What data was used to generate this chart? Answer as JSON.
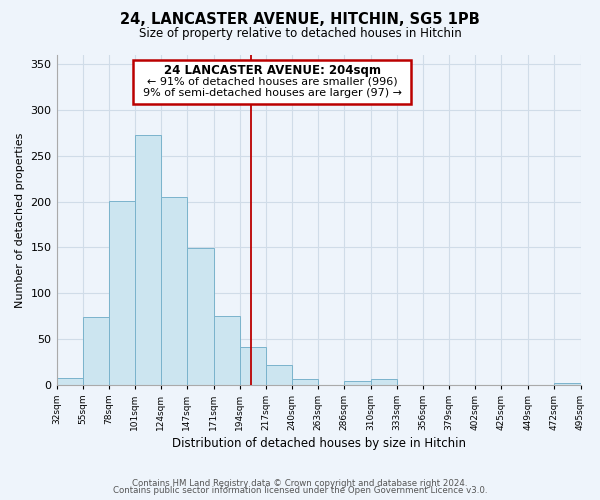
{
  "title": "24, LANCASTER AVENUE, HITCHIN, SG5 1PB",
  "subtitle": "Size of property relative to detached houses in Hitchin",
  "xlabel": "Distribution of detached houses by size in Hitchin",
  "ylabel": "Number of detached properties",
  "bin_labels": [
    "32sqm",
    "55sqm",
    "78sqm",
    "101sqm",
    "124sqm",
    "147sqm",
    "171sqm",
    "194sqm",
    "217sqm",
    "240sqm",
    "263sqm",
    "286sqm",
    "310sqm",
    "333sqm",
    "356sqm",
    "379sqm",
    "402sqm",
    "425sqm",
    "449sqm",
    "472sqm",
    "495sqm"
  ],
  "bar_heights": [
    7,
    74,
    201,
    273,
    205,
    149,
    75,
    41,
    21,
    6,
    0,
    4,
    6,
    0,
    0,
    0,
    0,
    0,
    0,
    2,
    0
  ],
  "bar_color": "#cce5f0",
  "bar_edge_color": "#7ab3cc",
  "highlight_line_color": "#bb0000",
  "annotation_title": "24 LANCASTER AVENUE: 204sqm",
  "annotation_line1": "← 91% of detached houses are smaller (996)",
  "annotation_line2": "9% of semi-detached houses are larger (97) →",
  "annotation_box_color": "#ffffff",
  "annotation_box_edge_color": "#bb0000",
  "ylim": [
    0,
    360
  ],
  "yticks": [
    0,
    50,
    100,
    150,
    200,
    250,
    300,
    350
  ],
  "footnote1": "Contains HM Land Registry data © Crown copyright and database right 2024.",
  "footnote2": "Contains public sector information licensed under the Open Government Licence v3.0.",
  "background_color": "#eef4fb",
  "grid_color": "#d0dce8",
  "bin_edges": [
    32,
    55,
    78,
    101,
    124,
    147,
    171,
    194,
    217,
    240,
    263,
    286,
    310,
    333,
    356,
    379,
    402,
    425,
    449,
    472,
    495
  ]
}
